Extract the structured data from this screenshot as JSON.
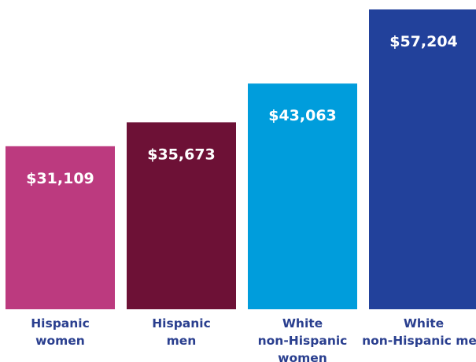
{
  "chart_data": {
    "type": "bar",
    "categories": [
      [
        "Hispanic",
        "women"
      ],
      [
        "Hispanic",
        "men"
      ],
      [
        "White",
        "non-Hispanic",
        "women"
      ],
      [
        "White",
        "non-Hispanic men"
      ]
    ],
    "values": [
      31109,
      35673,
      43063,
      57204
    ],
    "value_labels": [
      "$31,109",
      "$35,673",
      "$43,063",
      "$57,204"
    ],
    "colors": [
      "#bc3a7f",
      "#6d1136",
      "#009ddc",
      "#22419b"
    ],
    "label_color": "#2a3f8f",
    "ylim": [
      0,
      57204
    ],
    "grid": false
  }
}
